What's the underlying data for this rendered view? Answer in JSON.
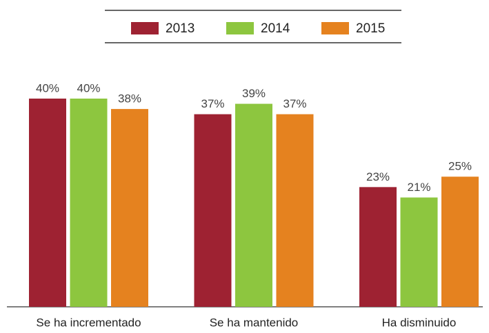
{
  "chart_data": {
    "type": "bar",
    "categories": [
      "Se ha incrementado",
      "Se ha mantenido",
      "Ha disminuido"
    ],
    "series": [
      {
        "name": "2013",
        "color": "#9e2232",
        "values": [
          40,
          37,
          23
        ],
        "value_labels": [
          "40%",
          "37%",
          "23%"
        ]
      },
      {
        "name": "2014",
        "color": "#8dc63f",
        "values": [
          40,
          39,
          21
        ],
        "value_labels": [
          "40%",
          "39%",
          "21%"
        ]
      },
      {
        "name": "2015",
        "color": "#e5821f",
        "values": [
          38,
          37,
          25
        ],
        "value_labels": [
          "38%",
          "37%",
          "25%"
        ]
      }
    ]
  }
}
